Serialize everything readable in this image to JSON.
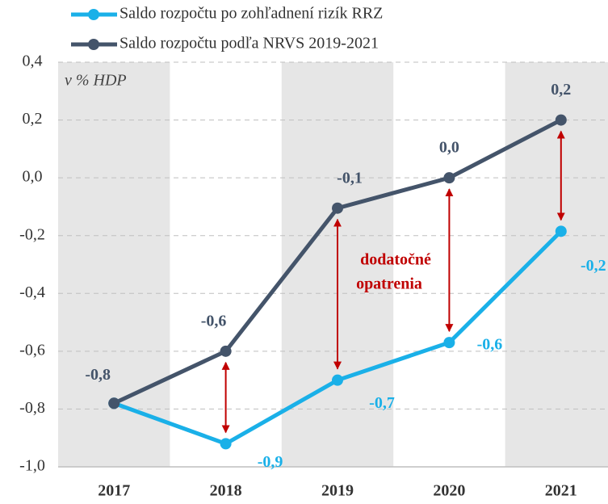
{
  "chart_data": {
    "type": "line",
    "categories": [
      "2017",
      "2018",
      "2019",
      "2020",
      "2021"
    ],
    "series": [
      {
        "name": "Saldo rozpočtu po zohľadnení rizík RRZ",
        "color": "#1ab0e8",
        "values": [
          -0.78,
          -0.92,
          -0.7,
          -0.57,
          -0.185
        ],
        "value_labels": [
          null,
          "-0,9",
          "-0,7",
          "-0,6",
          "-0,2"
        ]
      },
      {
        "name": "Saldo rozpočtu podľa NRVS 2019-2021",
        "color": "#44546a",
        "values": [
          -0.78,
          -0.6,
          -0.105,
          0.0,
          0.2
        ],
        "value_labels": [
          "-0,8",
          "-0,6",
          "-0,1",
          "0,0",
          "0,2"
        ]
      }
    ],
    "ylim": [
      -1.0,
      0.4
    ],
    "yticks": [
      {
        "value": -1.0,
        "label": "-1,0"
      },
      {
        "value": -0.8,
        "label": "-0,8"
      },
      {
        "value": -0.6,
        "label": "-0,6"
      },
      {
        "value": -0.4,
        "label": "-0,4"
      },
      {
        "value": -0.2,
        "label": "-0,2"
      },
      {
        "value": 0.0,
        "label": "0,0"
      },
      {
        "value": 0.2,
        "label": "0,2"
      },
      {
        "value": 0.4,
        "label": "0,4"
      }
    ],
    "grid": true,
    "annotations": [
      "v % HDP",
      "dodatočné",
      "opatrenia"
    ],
    "arrow_color": "#c00000",
    "band_color": "#e6e6e6"
  }
}
